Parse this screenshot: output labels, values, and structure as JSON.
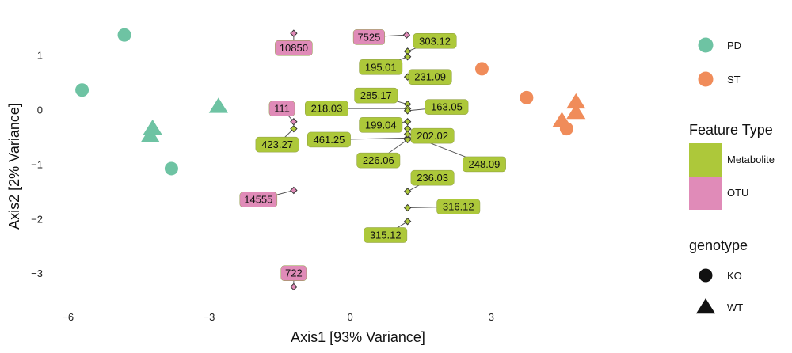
{
  "colors": {
    "PD": "#6ec3a3",
    "ST": "#f08c5a",
    "Metabolite": "#adc83a",
    "OTU": "#e08bb8",
    "connector": "#555555"
  },
  "chart_data": {
    "type": "scatter",
    "title": "",
    "xlabel": "Axis1 [93% Variance]",
    "ylabel": "Axis2 [2% Variance]",
    "xlim": [
      -6.4,
      6.9
    ],
    "ylim": [
      -3.65,
      1.75
    ],
    "xticks": [
      -6,
      -3,
      0,
      3
    ],
    "xtick_labels": [
      "−6",
      "−3",
      "0",
      "3"
    ],
    "yticks": [
      1,
      0,
      -1,
      -2,
      -3
    ],
    "ytick_labels": [
      "1",
      "0",
      "−1",
      "−2",
      "−3"
    ],
    "grid": false,
    "samples": [
      {
        "group": "PD",
        "genotype": "KO",
        "x": -4.8,
        "y": 1.37
      },
      {
        "group": "PD",
        "genotype": "KO",
        "x": -5.7,
        "y": 0.36
      },
      {
        "group": "PD",
        "genotype": "KO",
        "x": -3.8,
        "y": -1.08
      },
      {
        "group": "PD",
        "genotype": "WT",
        "x": -4.2,
        "y": -0.34
      },
      {
        "group": "PD",
        "genotype": "WT",
        "x": -4.25,
        "y": -0.48
      },
      {
        "group": "PD",
        "genotype": "WT",
        "x": -2.8,
        "y": 0.06
      },
      {
        "group": "ST",
        "genotype": "KO",
        "x": 2.8,
        "y": 0.75
      },
      {
        "group": "ST",
        "genotype": "KO",
        "x": 3.75,
        "y": 0.22
      },
      {
        "group": "ST",
        "genotype": "KO",
        "x": 4.6,
        "y": -0.35
      },
      {
        "group": "ST",
        "genotype": "WT",
        "x": 4.5,
        "y": -0.2
      },
      {
        "group": "ST",
        "genotype": "WT",
        "x": 4.8,
        "y": 0.14
      },
      {
        "group": "ST",
        "genotype": "WT",
        "x": 4.8,
        "y": -0.05
      }
    ],
    "features": [
      {
        "label": "10850",
        "type": "OTU",
        "x": -1.2,
        "y": 1.4,
        "lx": -1.2,
        "ly": 1.13
      },
      {
        "label": "7525",
        "type": "OTU",
        "x": 1.2,
        "y": 1.37,
        "lx": 0.4,
        "ly": 1.33
      },
      {
        "label": "303.12",
        "type": "Metabolite",
        "x": 1.22,
        "y": 1.07,
        "lx": 1.8,
        "ly": 1.26
      },
      {
        "label": "195.01",
        "type": "Metabolite",
        "x": 1.22,
        "y": 0.97,
        "lx": 0.65,
        "ly": 0.78
      },
      {
        "label": "231.09",
        "type": "Metabolite",
        "x": 1.22,
        "y": 0.6,
        "lx": 1.7,
        "ly": 0.6
      },
      {
        "label": "285.17",
        "type": "Metabolite",
        "x": 1.22,
        "y": 0.1,
        "lx": 0.55,
        "ly": 0.26
      },
      {
        "label": "111",
        "type": "OTU",
        "x": -1.2,
        "y": -0.22,
        "lx": -1.45,
        "ly": 0.02
      },
      {
        "label": "218.03",
        "type": "Metabolite",
        "x": 1.22,
        "y": 0.02,
        "lx": -0.5,
        "ly": 0.02
      },
      {
        "label": "163.05",
        "type": "Metabolite",
        "x": 1.22,
        "y": -0.02,
        "lx": 2.05,
        "ly": 0.05
      },
      {
        "label": "199.04",
        "type": "Metabolite",
        "x": 1.22,
        "y": -0.22,
        "lx": 0.65,
        "ly": -0.28
      },
      {
        "label": "423.27",
        "type": "Metabolite",
        "x": -1.2,
        "y": -0.35,
        "lx": -1.55,
        "ly": -0.64
      },
      {
        "label": "202.02",
        "type": "Metabolite",
        "x": 1.22,
        "y": -0.35,
        "lx": 1.75,
        "ly": -0.48
      },
      {
        "label": "461.25",
        "type": "Metabolite",
        "x": 1.22,
        "y": -0.52,
        "lx": -0.45,
        "ly": -0.55
      },
      {
        "label": "226.06",
        "type": "Metabolite",
        "x": 1.22,
        "y": -0.55,
        "lx": 0.6,
        "ly": -0.93
      },
      {
        "label": "248.09",
        "type": "Metabolite",
        "x": 1.22,
        "y": -0.45,
        "lx": 2.85,
        "ly": -1.0
      },
      {
        "label": "14555",
        "type": "OTU",
        "x": -1.2,
        "y": -1.48,
        "lx": -1.95,
        "ly": -1.65
      },
      {
        "label": "236.03",
        "type": "Metabolite",
        "x": 1.22,
        "y": -1.5,
        "lx": 1.75,
        "ly": -1.25
      },
      {
        "label": "316.12",
        "type": "Metabolite",
        "x": 1.22,
        "y": -1.8,
        "lx": 2.3,
        "ly": -1.78
      },
      {
        "label": "315.12",
        "type": "Metabolite",
        "x": 1.22,
        "y": -2.05,
        "lx": 0.75,
        "ly": -2.3
      },
      {
        "label": "722",
        "type": "OTU",
        "x": -1.2,
        "y": -3.25,
        "lx": -1.2,
        "ly": -3.0
      }
    ]
  },
  "legend": {
    "group_items": [
      {
        "key": "PD",
        "label": "PD"
      },
      {
        "key": "ST",
        "label": "ST"
      }
    ],
    "feature_title": "Feature Type",
    "feature_items": [
      {
        "key": "Metabolite",
        "label": "Metabolite"
      },
      {
        "key": "OTU",
        "label": "OTU"
      }
    ],
    "genotype_title": "genotype",
    "genotype_items": [
      {
        "key": "KO",
        "label": "KO",
        "shape": "circle"
      },
      {
        "key": "WT",
        "label": "WT",
        "shape": "triangle"
      }
    ]
  }
}
